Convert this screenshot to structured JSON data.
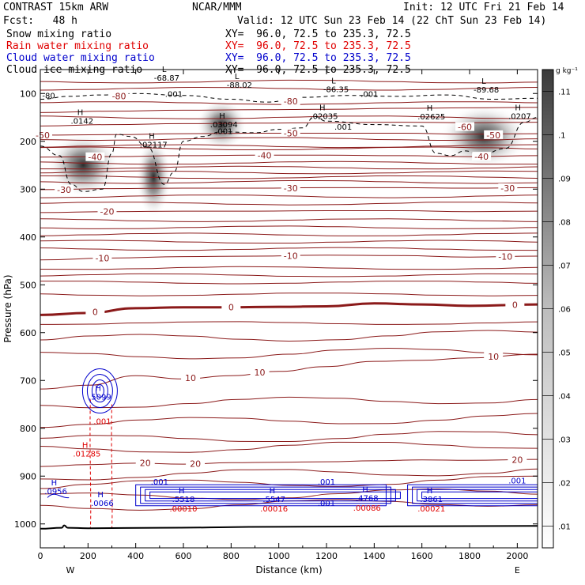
{
  "header": {
    "title": "CONTRAST 15km ARW",
    "center": "NCAR/MMM",
    "init": "Init: 12 UTC Fri 21 Feb 14",
    "fcst": "Fcst:   48 h",
    "valid": "Valid: 12 UTC Sun 23 Feb 14 (22 ChT Sun 23 Feb 14)"
  },
  "fields": [
    {
      "name": "Snow mixing ratio",
      "xy": "XY=  96.0, 72.5 to 235.3, 72.5",
      "color": "#000000"
    },
    {
      "name": "Rain water mixing ratio",
      "xy": "XY=  96.0, 72.5 to 235.3, 72.5",
      "color": "#e00000"
    },
    {
      "name": "Cloud water mixing ratio",
      "xy": "XY=  96.0, 72.5 to 235.3, 72.5",
      "color": "#0000cc"
    },
    {
      "name": "Cloud ice mixing ratio",
      "xy": "XY=  96.0, 72.5 to 235.3, 72.5",
      "color": "#000000"
    }
  ],
  "chart_data": {
    "type": "cross-section",
    "xlabel": "Distance (km)",
    "ylabel": "Pressure (hPa)",
    "xlim": [
      0,
      2085
    ],
    "ylim": [
      1050,
      50
    ],
    "x_ticks": [
      0,
      200,
      400,
      600,
      800,
      1000,
      1200,
      1400,
      1600,
      1800,
      2000
    ],
    "y_ticks": [
      100,
      200,
      300,
      400,
      500,
      600,
      700,
      800,
      900,
      1000
    ],
    "x_end_labels": {
      "left": "W",
      "right": "E"
    },
    "colorbar": {
      "unit": "g kg⁻¹",
      "min": 0.005,
      "max": 0.115,
      "ticks": [
        0.01,
        0.02,
        0.03,
        0.04,
        0.05,
        0.06,
        0.07,
        0.08,
        0.09,
        0.1,
        0.11
      ],
      "tick_labels": [
        ".01",
        ".02",
        ".03",
        ".04",
        ".05",
        ".06",
        ".07",
        ".08",
        ".09",
        ".1",
        ".11"
      ]
    },
    "temperature_contours": [
      {
        "label": "-80",
        "p": [
          [
            0,
            140
          ],
          [
            300,
            137
          ],
          [
            600,
            135
          ],
          [
            900,
            134
          ],
          [
            1200,
            133
          ],
          [
            1500,
            131
          ],
          [
            1800,
            130
          ],
          [
            2085,
            129
          ]
        ],
        "label_pos": [
          [
            330,
            105
          ],
          [
            1050,
            116
          ]
        ]
      },
      {
        "label": "-60",
        "p": [
          [
            0,
            168
          ],
          [
            300,
            165
          ],
          [
            600,
            163
          ],
          [
            900,
            162
          ],
          [
            1200,
            161
          ],
          [
            1500,
            160
          ],
          [
            1800,
            161
          ],
          [
            2085,
            160
          ]
        ],
        "label_pos": [
          [
            1780,
            170
          ]
        ]
      },
      {
        "label": "-50",
        "p": [
          [
            0,
            187
          ],
          [
            300,
            186
          ],
          [
            600,
            184
          ],
          [
            900,
            183
          ],
          [
            1200,
            183
          ],
          [
            1500,
            183
          ],
          [
            1800,
            185
          ],
          [
            2085,
            184
          ]
        ],
        "label_pos": [
          [
            10,
            187
          ],
          [
            1050,
            183
          ],
          [
            1900,
            187
          ]
        ]
      },
      {
        "label": "-40",
        "p": [
          [
            0,
            233
          ],
          [
            300,
            232
          ],
          [
            600,
            230
          ],
          [
            900,
            229
          ],
          [
            1200,
            229
          ],
          [
            1500,
            230
          ],
          [
            1800,
            232
          ],
          [
            2085,
            230
          ]
        ],
        "label_pos": [
          [
            230,
            233
          ],
          [
            940,
            229
          ],
          [
            1850,
            232
          ]
        ]
      },
      {
        "label": "-30",
        "p": [
          [
            0,
            301
          ],
          [
            300,
            299
          ],
          [
            600,
            298
          ],
          [
            900,
            298
          ],
          [
            1200,
            297
          ],
          [
            1500,
            297
          ],
          [
            1800,
            298
          ],
          [
            2085,
            297
          ]
        ],
        "label_pos": [
          [
            100,
            301
          ],
          [
            1050,
            298
          ],
          [
            1960,
            298
          ]
        ]
      },
      {
        "label": "-20",
        "p": [
          [
            0,
            349
          ],
          [
            300,
            347
          ],
          [
            600,
            346
          ],
          [
            900,
            346
          ],
          [
            1200,
            345
          ],
          [
            1500,
            345
          ],
          [
            1800,
            347
          ],
          [
            2085,
            346
          ]
        ],
        "label_pos": [
          [
            280,
            347
          ]
        ]
      },
      {
        "label": "-10",
        "p": [
          [
            0,
            448
          ],
          [
            300,
            444
          ],
          [
            600,
            441
          ],
          [
            900,
            440
          ],
          [
            1200,
            438
          ],
          [
            1500,
            439
          ],
          [
            1800,
            442
          ],
          [
            2085,
            440
          ]
        ],
        "label_pos": [
          [
            260,
            444
          ],
          [
            1050,
            439
          ],
          [
            1950,
            441
          ]
        ]
      },
      {
        "label": "0",
        "p": [
          [
            0,
            563
          ],
          [
            200,
            559
          ],
          [
            400,
            549
          ],
          [
            600,
            547
          ],
          [
            800,
            547
          ],
          [
            1000,
            546
          ],
          [
            1200,
            545
          ],
          [
            1400,
            539
          ],
          [
            1600,
            541
          ],
          [
            1800,
            544
          ],
          [
            2085,
            541
          ]
        ],
        "label_pos": [
          [
            230,
            557
          ],
          [
            800,
            547
          ],
          [
            1990,
            542
          ]
        ]
      },
      {
        "label": "10",
        "p": [
          [
            0,
            718
          ],
          [
            200,
            710
          ],
          [
            400,
            690
          ],
          [
            600,
            697
          ],
          [
            800,
            690
          ],
          [
            1000,
            681
          ],
          [
            1200,
            671
          ],
          [
            1400,
            660
          ],
          [
            1600,
            658
          ],
          [
            1800,
            653
          ],
          [
            2085,
            645
          ]
        ],
        "label_pos": [
          [
            630,
            695
          ],
          [
            920,
            683
          ],
          [
            1900,
            650
          ]
        ]
      },
      {
        "label": "20",
        "p": [
          [
            0,
            880
          ],
          [
            200,
            876
          ],
          [
            400,
            873
          ],
          [
            600,
            875
          ],
          [
            800,
            872
          ],
          [
            1000,
            871
          ],
          [
            1200,
            870
          ],
          [
            1400,
            868
          ],
          [
            1600,
            866
          ],
          [
            1800,
            867
          ],
          [
            2085,
            865
          ]
        ],
        "label_pos": [
          [
            440,
            872
          ],
          [
            650,
            874
          ],
          [
            2000,
            866
          ]
        ]
      }
    ],
    "extra_isotherm_levels": [
      75,
      90,
      120,
      150,
      195,
      210,
      215,
      245,
      255,
      265,
      275,
      285,
      315,
      330,
      365,
      380,
      395,
      410,
      425,
      465,
      480,
      495,
      520,
      580,
      615,
      650,
      750,
      790,
      825,
      845,
      900,
      920,
      945,
      965
    ],
    "surface_pressure": [
      [
        0,
        1010
      ],
      [
        90,
        1008
      ],
      [
        100,
        1003
      ],
      [
        115,
        1008
      ],
      [
        200,
        1009
      ],
      [
        500,
        1008
      ],
      [
        1000,
        1006
      ],
      [
        1500,
        1005
      ],
      [
        2085,
        1004
      ]
    ],
    "snow_maxima": [
      {
        "x": 180,
        "p": 250,
        "value": ".0142",
        "label_x": 175,
        "label_p": 163
      },
      {
        "x": 475,
        "p": 275,
        "value": ".02117",
        "label_x": 475,
        "label_p": 213
      },
      {
        "x": 760,
        "p": 165,
        "value": ".03094",
        "label_x": 770,
        "label_p": 171
      },
      {
        "x": 1860,
        "p": 190,
        "value": ".02625",
        "label_x": 1640,
        "label_p": 154
      }
    ],
    "ice_annotations": [
      {
        "type": "H",
        "value": ".02035",
        "x": 1190,
        "p": 153
      },
      {
        "type": "H",
        "value": ".0207",
        "x": 2010,
        "p": 153
      },
      {
        "type": "L",
        "value": "-68.87",
        "x": 530,
        "p": 73
      },
      {
        "type": "L",
        "value": "-88.02",
        "x": 835,
        "p": 88
      },
      {
        "type": "L",
        "value": "-86.35",
        "x": 1240,
        "p": 97
      },
      {
        "type": "L",
        "value": "-89.68",
        "x": 1870,
        "p": 98
      },
      {
        "type": "label",
        "value": ".001",
        "x": 560,
        "p": 107
      },
      {
        "type": "label",
        "value": ".001",
        "x": 1380,
        "p": 107
      },
      {
        "type": "label",
        "value": ".001",
        "x": 770,
        "p": 185
      },
      {
        "type": "label",
        "value": ".001",
        "x": 1270,
        "p": 176
      },
      {
        "type": "label",
        "value": "-80",
        "x": 35,
        "p": 110
      }
    ],
    "rain_annotations": [
      {
        "type": "H",
        "value": ".01285",
        "x": 195,
        "p": 859
      },
      {
        "type": "label",
        "value": ".001",
        "x": 260,
        "p": 791
      },
      {
        "type": "label",
        "value": ".00010",
        "x": 600,
        "p": 974
      },
      {
        "type": "label",
        "value": ".00016",
        "x": 980,
        "p": 974
      },
      {
        "type": "label",
        "value": ".00086",
        "x": 1370,
        "p": 972
      },
      {
        "type": "label",
        "value": ".00021",
        "x": 1640,
        "p": 974
      }
    ],
    "cloud_annotations": [
      {
        "type": "H",
        "value": ".5099",
        "x": 250,
        "p": 740
      },
      {
        "type": "H",
        "value": ".0956",
        "x": 65,
        "p": 938
      },
      {
        "type": "H",
        "value": ".0066",
        "x": 260,
        "p": 962
      },
      {
        "type": "H",
        "value": ".5518",
        "x": 600,
        "p": 954
      },
      {
        "type": "H",
        "value": ".5547",
        "x": 980,
        "p": 954
      },
      {
        "type": "H",
        "value": ".4768",
        "x": 1370,
        "p": 952
      },
      {
        "type": "H",
        "value": ".3861",
        "x": 1640,
        "p": 954
      },
      {
        "type": "label",
        "value": ".001",
        "x": 500,
        "p": 918
      },
      {
        "type": "label",
        "value": ".001",
        "x": 1200,
        "p": 962
      },
      {
        "type": "label",
        "value": ".001",
        "x": 1200,
        "p": 918
      },
      {
        "type": "label",
        "value": ".001",
        "x": 2000,
        "p": 915
      }
    ]
  }
}
